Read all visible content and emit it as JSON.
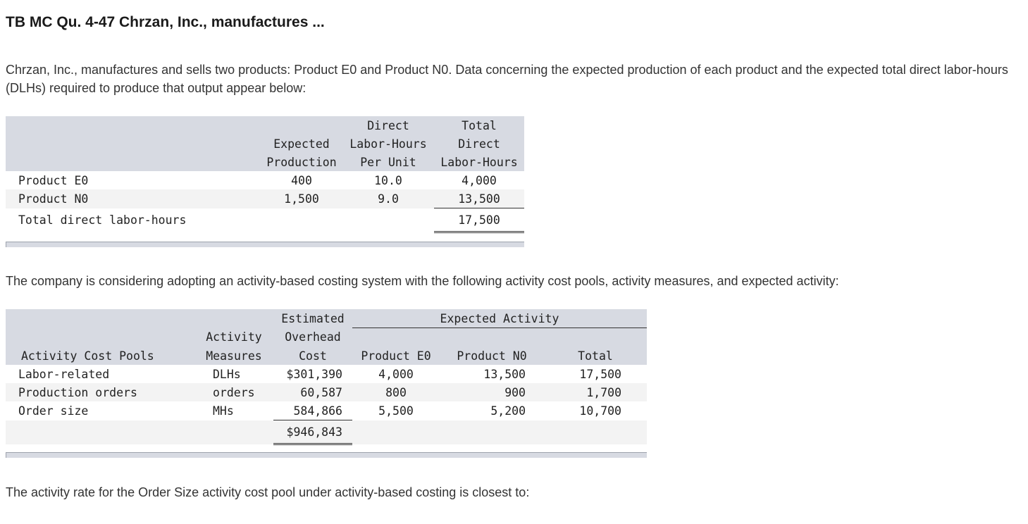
{
  "title": "TB MC Qu. 4-47 Chrzan, Inc., manufactures ...",
  "intro": "Chrzan, Inc., manufactures and sells two products: Product E0 and Product N0. Data concerning the expected production of each product and the expected total direct labor-hours (DLHs) required to produce that output appear below:",
  "table1": {
    "headers": {
      "expected_production": [
        "Expected",
        "Production"
      ],
      "dlh_per_unit": [
        "Direct",
        "Labor-Hours",
        "Per Unit"
      ],
      "total_dlh": [
        "Total",
        "Direct",
        "Labor-Hours"
      ]
    },
    "rows": [
      {
        "label": "Product E0",
        "production": "400",
        "per_unit": "10.0",
        "total": "4,000"
      },
      {
        "label": "Product N0",
        "production": "1,500",
        "per_unit": "9.0",
        "total": "13,500"
      }
    ],
    "total_row": {
      "label": "Total direct labor-hours",
      "total": "17,500"
    }
  },
  "abc_intro": "The company is considering adopting an activity-based costing system with the following activity cost pools, activity measures, and expected activity:",
  "table2": {
    "headers": {
      "pools": "Activity Cost Pools",
      "measures": [
        "Activity",
        "Measures"
      ],
      "cost": [
        "Estimated",
        "Overhead",
        "Cost"
      ],
      "expected_activity": "Expected Activity",
      "product_e0": "Product E0",
      "product_n0": "Product N0",
      "total": "Total"
    },
    "rows": [
      {
        "pool": "Labor-related",
        "measure": "DLHs",
        "cost": "$301,390",
        "e0": "4,000",
        "n0": "13,500",
        "total": "17,500"
      },
      {
        "pool": "Production orders",
        "measure": "orders",
        "cost": "60,587",
        "e0": "800",
        "n0": "900",
        "total": "1,700"
      },
      {
        "pool": "Order size",
        "measure": "MHs",
        "cost": "584,866",
        "e0": "5,500",
        "n0": "5,200",
        "total": "10,700"
      }
    ],
    "total_cost": "$946,843"
  },
  "question": "The activity rate for the Order Size activity cost pool under activity-based costing is closest to:"
}
